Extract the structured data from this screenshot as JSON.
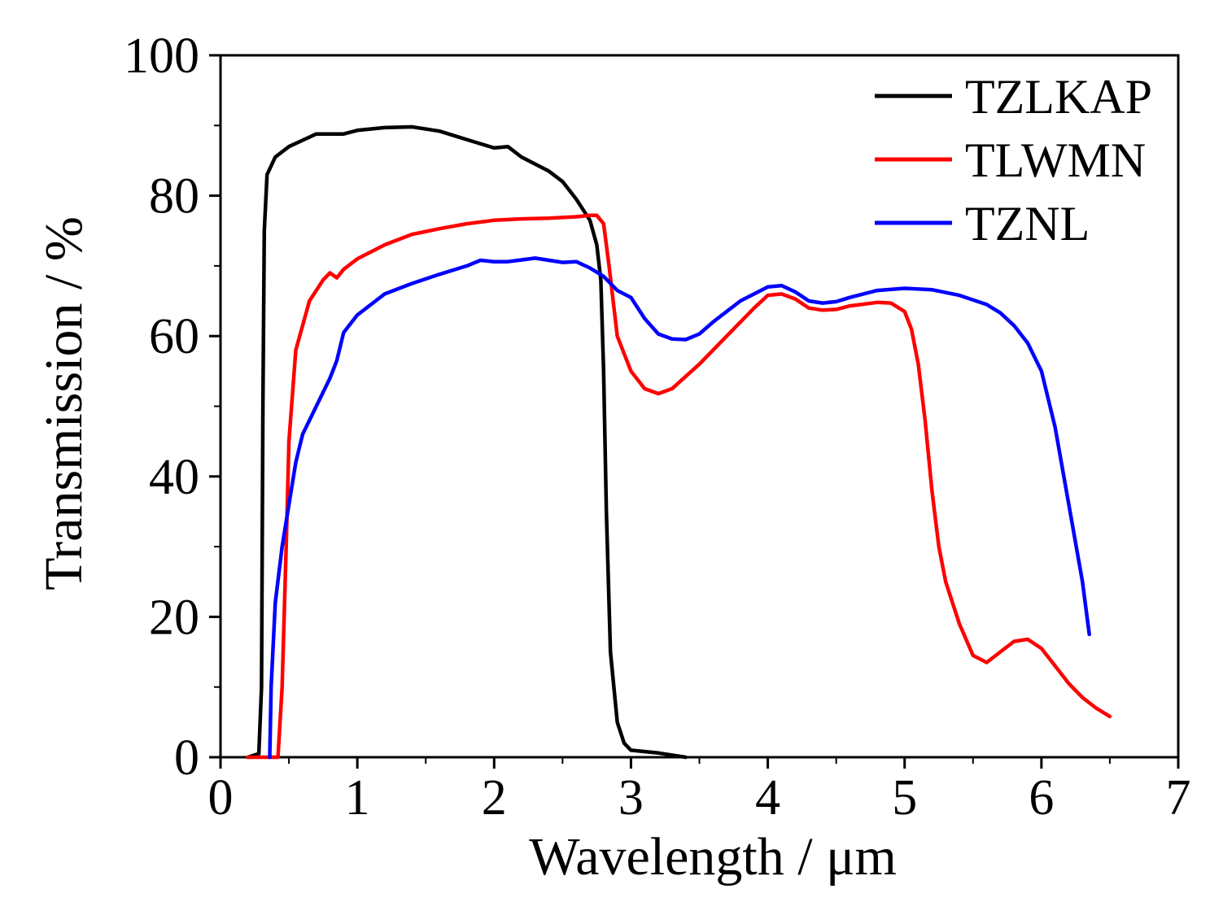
{
  "chart_data": {
    "type": "line",
    "title": "",
    "xlabel": "Wavelength / μm",
    "ylabel": "Transmission / %",
    "xlim": [
      0,
      7
    ],
    "ylim": [
      0,
      100
    ],
    "xticks": [
      0,
      1,
      2,
      3,
      4,
      5,
      6,
      7
    ],
    "yticks": [
      0,
      20,
      40,
      60,
      80,
      100
    ],
    "xtick_labels": [
      "0",
      "1",
      "2",
      "3",
      "4",
      "5",
      "6",
      "7"
    ],
    "ytick_labels": [
      "0",
      "20",
      "40",
      "60",
      "80",
      "100"
    ],
    "grid": false,
    "legend_position": "top-right",
    "series": [
      {
        "name": "TZLKAP",
        "color": "#000000",
        "points": [
          [
            0.2,
            0
          ],
          [
            0.28,
            0.5
          ],
          [
            0.3,
            10
          ],
          [
            0.31,
            50
          ],
          [
            0.32,
            75
          ],
          [
            0.34,
            83
          ],
          [
            0.4,
            85.5
          ],
          [
            0.5,
            87
          ],
          [
            0.7,
            88.8
          ],
          [
            0.9,
            88.8
          ],
          [
            1.0,
            89.3
          ],
          [
            1.2,
            89.7
          ],
          [
            1.4,
            89.8
          ],
          [
            1.6,
            89.2
          ],
          [
            1.8,
            88
          ],
          [
            2.0,
            86.8
          ],
          [
            2.1,
            87
          ],
          [
            2.2,
            85.5
          ],
          [
            2.3,
            84.5
          ],
          [
            2.4,
            83.5
          ],
          [
            2.5,
            82
          ],
          [
            2.6,
            79.5
          ],
          [
            2.7,
            76.5
          ],
          [
            2.75,
            73
          ],
          [
            2.78,
            68
          ],
          [
            2.8,
            55
          ],
          [
            2.82,
            35
          ],
          [
            2.85,
            15
          ],
          [
            2.9,
            5
          ],
          [
            2.95,
            2
          ],
          [
            3.0,
            1
          ],
          [
            3.2,
            0.6
          ],
          [
            3.4,
            0
          ]
        ]
      },
      {
        "name": "TLWMN",
        "color": "#ff0000",
        "points": [
          [
            0.2,
            0
          ],
          [
            0.3,
            0
          ],
          [
            0.42,
            0
          ],
          [
            0.45,
            10
          ],
          [
            0.48,
            30
          ],
          [
            0.5,
            45
          ],
          [
            0.55,
            58
          ],
          [
            0.65,
            65
          ],
          [
            0.75,
            68
          ],
          [
            0.8,
            69
          ],
          [
            0.85,
            68.3
          ],
          [
            0.9,
            69.5
          ],
          [
            1.0,
            71
          ],
          [
            1.2,
            73
          ],
          [
            1.4,
            74.5
          ],
          [
            1.6,
            75.3
          ],
          [
            1.8,
            76
          ],
          [
            2.0,
            76.5
          ],
          [
            2.2,
            76.7
          ],
          [
            2.4,
            76.8
          ],
          [
            2.6,
            77
          ],
          [
            2.7,
            77.2
          ],
          [
            2.75,
            77.2
          ],
          [
            2.8,
            76
          ],
          [
            2.84,
            70
          ],
          [
            2.9,
            60
          ],
          [
            3.0,
            55
          ],
          [
            3.1,
            52.5
          ],
          [
            3.2,
            51.8
          ],
          [
            3.3,
            52.5
          ],
          [
            3.5,
            56
          ],
          [
            3.7,
            60
          ],
          [
            3.9,
            64
          ],
          [
            4.0,
            65.8
          ],
          [
            4.1,
            66
          ],
          [
            4.2,
            65.3
          ],
          [
            4.3,
            64
          ],
          [
            4.4,
            63.7
          ],
          [
            4.5,
            63.8
          ],
          [
            4.6,
            64.3
          ],
          [
            4.8,
            64.8
          ],
          [
            4.9,
            64.7
          ],
          [
            5.0,
            63.5
          ],
          [
            5.05,
            61
          ],
          [
            5.1,
            56
          ],
          [
            5.15,
            48
          ],
          [
            5.2,
            38
          ],
          [
            5.25,
            30
          ],
          [
            5.3,
            25
          ],
          [
            5.4,
            19
          ],
          [
            5.5,
            14.5
          ],
          [
            5.6,
            13.5
          ],
          [
            5.7,
            15
          ],
          [
            5.8,
            16.5
          ],
          [
            5.9,
            16.8
          ],
          [
            6.0,
            15.5
          ],
          [
            6.1,
            13
          ],
          [
            6.2,
            10.5
          ],
          [
            6.3,
            8.5
          ],
          [
            6.4,
            7
          ],
          [
            6.5,
            5.8
          ]
        ]
      },
      {
        "name": "TZNL",
        "color": "#0000ff",
        "points": [
          [
            0.36,
            0
          ],
          [
            0.37,
            10
          ],
          [
            0.4,
            22
          ],
          [
            0.45,
            30
          ],
          [
            0.5,
            36
          ],
          [
            0.55,
            42
          ],
          [
            0.6,
            46
          ],
          [
            0.7,
            50
          ],
          [
            0.8,
            54
          ],
          [
            0.85,
            56.5
          ],
          [
            0.9,
            60.5
          ],
          [
            1.0,
            63
          ],
          [
            1.2,
            66
          ],
          [
            1.4,
            67.5
          ],
          [
            1.6,
            68.8
          ],
          [
            1.8,
            70
          ],
          [
            1.9,
            70.8
          ],
          [
            2.0,
            70.6
          ],
          [
            2.1,
            70.6
          ],
          [
            2.3,
            71.1
          ],
          [
            2.5,
            70.5
          ],
          [
            2.6,
            70.6
          ],
          [
            2.7,
            69.7
          ],
          [
            2.8,
            68.5
          ],
          [
            2.9,
            66.5
          ],
          [
            3.0,
            65.5
          ],
          [
            3.1,
            62.5
          ],
          [
            3.2,
            60.3
          ],
          [
            3.3,
            59.6
          ],
          [
            3.4,
            59.5
          ],
          [
            3.5,
            60.3
          ],
          [
            3.6,
            62
          ],
          [
            3.8,
            65
          ],
          [
            4.0,
            67
          ],
          [
            4.1,
            67.2
          ],
          [
            4.2,
            66.3
          ],
          [
            4.3,
            65
          ],
          [
            4.4,
            64.7
          ],
          [
            4.5,
            64.9
          ],
          [
            4.6,
            65.5
          ],
          [
            4.8,
            66.5
          ],
          [
            5.0,
            66.8
          ],
          [
            5.2,
            66.6
          ],
          [
            5.4,
            65.8
          ],
          [
            5.6,
            64.5
          ],
          [
            5.7,
            63.3
          ],
          [
            5.8,
            61.5
          ],
          [
            5.9,
            59
          ],
          [
            6.0,
            55
          ],
          [
            6.1,
            47
          ],
          [
            6.2,
            36
          ],
          [
            6.3,
            25
          ],
          [
            6.35,
            17.5
          ]
        ]
      }
    ]
  }
}
